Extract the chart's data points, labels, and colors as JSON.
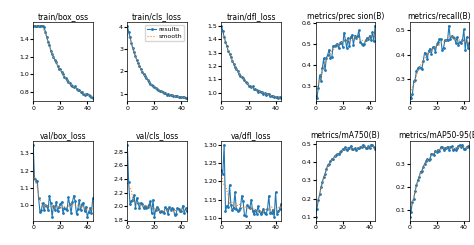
{
  "titles_row1": [
    "train/box_oss",
    "train/cls_loss",
    "train/dfl_loss",
    "metrics/prec sion(B)",
    "metrics/recall(B)"
  ],
  "titles_row2": [
    "val/box_loss",
    "val/cls_loss",
    "va/dfl_loss",
    "metrics/mA750(B)",
    "metrics/mAP50-95(B)"
  ],
  "n_epochs": 45,
  "line_color": "#1f77b4",
  "smooth_color": "#ff7f0e",
  "marker": ".",
  "marker_size": 2,
  "line_width": 0.8,
  "legend_labels": [
    "results",
    "smooth"
  ],
  "figsize": [
    4.74,
    2.45
  ],
  "dpi": 100,
  "title_fontsize": 5.5,
  "tick_fontsize": 4.5,
  "legend_fontsize": 4.5
}
